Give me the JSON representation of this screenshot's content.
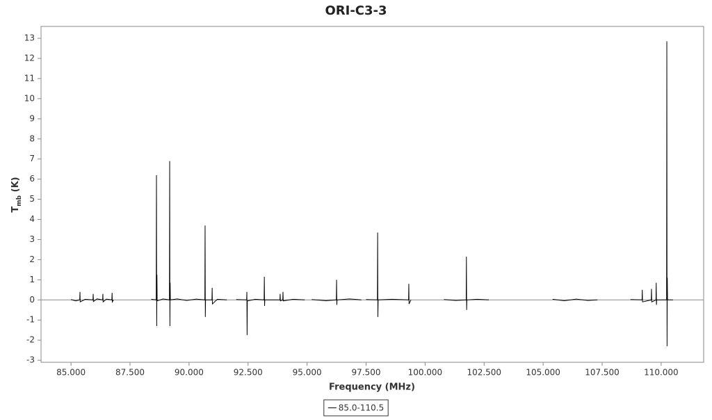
{
  "chart_data": {
    "type": "line",
    "title": "ORI-C3-3",
    "xlabel": "Frequency (MHz)",
    "ylabel": {
      "text": "T",
      "subscript": "mb",
      "suffix": " (K)"
    },
    "xlim": [
      83.73,
      111.8
    ],
    "ylim": [
      -3.1,
      13.59
    ],
    "xticks": [
      {
        "value": 85,
        "label": "85.000"
      },
      {
        "value": 87.5,
        "label": "87.500"
      },
      {
        "value": 90,
        "label": "90.000"
      },
      {
        "value": 92.5,
        "label": "92.500"
      },
      {
        "value": 95,
        "label": "95.000"
      },
      {
        "value": 97.5,
        "label": "97.500"
      },
      {
        "value": 100,
        "label": "100.000"
      },
      {
        "value": 102.5,
        "label": "102.500"
      },
      {
        "value": 105,
        "label": "105.000"
      },
      {
        "value": 107.5,
        "label": "107.500"
      },
      {
        "value": 110,
        "label": "110.000"
      }
    ],
    "yticks": [
      -3,
      -2,
      -1,
      0,
      1,
      2,
      3,
      4,
      5,
      6,
      7,
      8,
      9,
      10,
      11,
      12,
      13
    ],
    "grid": false,
    "legend": "bottom",
    "x": [
      85.0,
      85.2,
      85.37,
      85.38,
      85.39,
      85.6,
      85.93,
      85.94,
      85.95,
      86.1,
      86.34,
      86.35,
      86.36,
      86.5,
      86.73,
      86.74,
      86.75,
      86.8,
      87.6,
      88.4,
      88.61,
      88.62,
      88.63,
      88.64,
      88.65,
      88.9,
      89.17,
      89.18,
      89.19,
      89.2,
      89.21,
      89.5,
      89.9,
      90.3,
      90.67,
      90.68,
      90.69,
      90.7,
      90.97,
      90.98,
      90.99,
      91.2,
      91.6,
      91.8,
      92.0,
      92.44,
      92.45,
      92.46,
      92.47,
      92.8,
      93.18,
      93.19,
      93.2,
      93.21,
      93.85,
      93.86,
      93.87,
      93.97,
      93.98,
      93.99,
      94.4,
      94.9,
      95.0,
      95.2,
      95.8,
      96.24,
      96.25,
      96.26,
      96.27,
      96.8,
      97.3,
      97.4,
      97.5,
      97.98,
      97.99,
      98.0,
      98.01,
      98.6,
      99.3,
      99.31,
      99.32,
      99.4,
      100.0,
      100.8,
      101.3,
      101.74,
      101.75,
      101.76,
      101.77,
      102.2,
      102.7,
      104.0,
      105.4,
      105.9,
      106.4,
      106.9,
      107.3,
      108.0,
      108.7,
      109.19,
      109.2,
      109.21,
      109.58,
      109.59,
      109.6,
      109.78,
      109.79,
      109.8,
      109.81,
      110.23,
      110.24,
      110.25,
      110.26,
      110.27,
      110.5
    ],
    "series": [
      {
        "name": "85.0-110.5",
        "color": "#000000",
        "values": [
          0.02,
          -0.05,
          0,
          0.4,
          -0.1,
          0.03,
          0,
          0.3,
          -0.08,
          0.05,
          0,
          0.3,
          -0.1,
          0.04,
          0,
          0.35,
          -0.1,
          0.0,
          null,
          0.03,
          0,
          6.2,
          -1.3,
          1.25,
          -0.05,
          0.05,
          0,
          6.9,
          -1.3,
          0.85,
          0,
          0.05,
          -0.03,
          0.04,
          0,
          3.7,
          -0.85,
          0,
          0,
          0.6,
          -0.2,
          0.03,
          0.0,
          null,
          0.02,
          0,
          0.4,
          -1.75,
          -0.05,
          0.03,
          0,
          1.15,
          -0.3,
          0,
          0,
          0.3,
          -0.05,
          0,
          0.4,
          -0.05,
          0.03,
          0,
          null,
          0.02,
          -0.04,
          0,
          1.0,
          -0.25,
          0,
          0.05,
          0,
          null,
          0.02,
          0,
          3.35,
          -0.85,
          0,
          0.03,
          0,
          0.8,
          -0.2,
          0,
          null,
          0.02,
          -0.03,
          0,
          2.15,
          -0.5,
          0,
          0.03,
          0,
          null,
          0.03,
          -0.04,
          0.04,
          -0.03,
          0,
          null,
          0.02,
          0,
          0.5,
          -0.1,
          0,
          0.55,
          -0.1,
          0,
          0.85,
          -0.25,
          0,
          0,
          12.85,
          -2.3,
          1.1,
          0,
          0
        ]
      }
    ]
  }
}
